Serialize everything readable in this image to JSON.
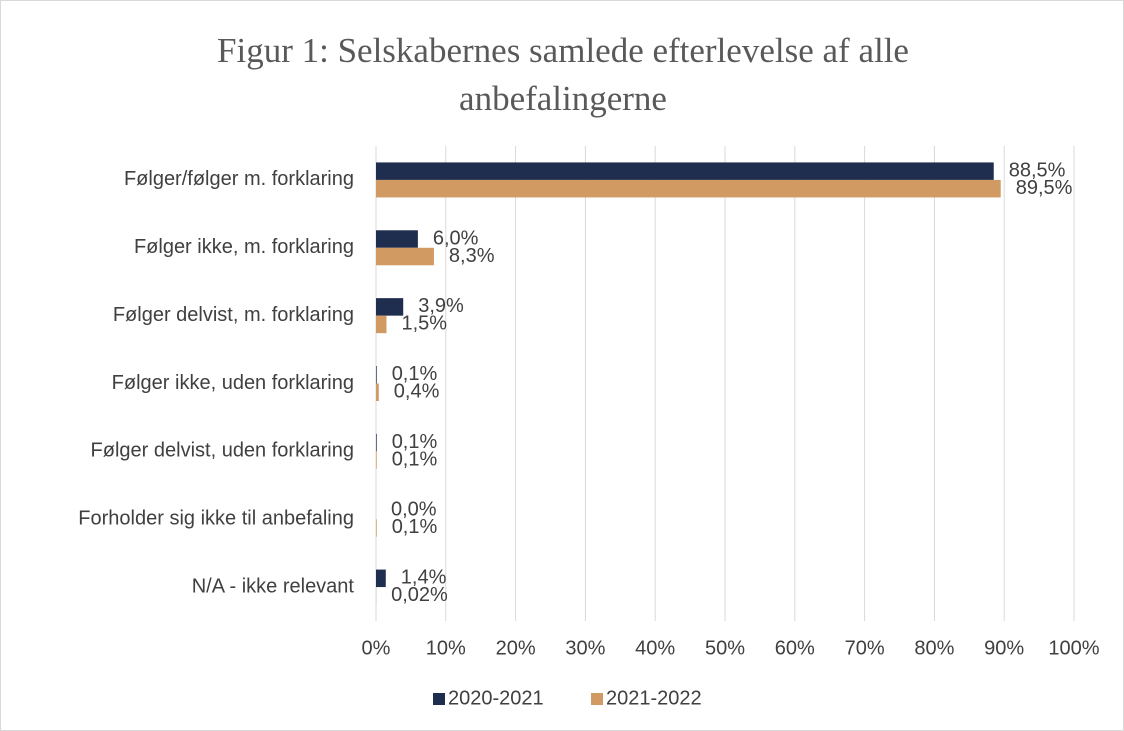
{
  "chart_data": {
    "type": "bar",
    "orientation": "horizontal",
    "title": "Figur 1: Selskabernes samlede efterlevelse af alle anbefalingerne",
    "categories": [
      "Følger/følger m. forklaring",
      "Følger ikke, m. forklaring",
      "Følger delvist, m. forklaring",
      "Følger ikke, uden forklaring",
      "Følger delvist, uden forklaring",
      "Forholder sig ikke til anbefaling",
      "N/A - ikke relevant"
    ],
    "series": [
      {
        "name": "2020-2021",
        "color": "#1f2d4e",
        "values": [
          88.5,
          6.0,
          3.9,
          0.1,
          0.1,
          0.0,
          1.4
        ],
        "value_labels": [
          "88,5%",
          "6,0%",
          "3,9%",
          "0,1%",
          "0,1%",
          "0,0%",
          "1,4%"
        ]
      },
      {
        "name": "2021-2022",
        "color": "#d09a62",
        "values": [
          89.5,
          8.3,
          1.5,
          0.4,
          0.1,
          0.1,
          0.02
        ],
        "value_labels": [
          "89,5%",
          "8,3%",
          "1,5%",
          "0,4%",
          "0,1%",
          "0,1%",
          "0,02%"
        ]
      }
    ],
    "xlim": [
      0,
      100
    ],
    "xticks": [
      {
        "value": 0,
        "label": "0%"
      },
      {
        "value": 10,
        "label": "10%"
      },
      {
        "value": 20,
        "label": "20%"
      },
      {
        "value": 30,
        "label": "30%"
      },
      {
        "value": 40,
        "label": "40%"
      },
      {
        "value": 50,
        "label": "50%"
      },
      {
        "value": 60,
        "label": "60%"
      },
      {
        "value": 70,
        "label": "70%"
      },
      {
        "value": 80,
        "label": "80%"
      },
      {
        "value": 90,
        "label": "90%"
      },
      {
        "value": 100,
        "label": "100%"
      }
    ],
    "grid": true,
    "legend": "bottom"
  }
}
